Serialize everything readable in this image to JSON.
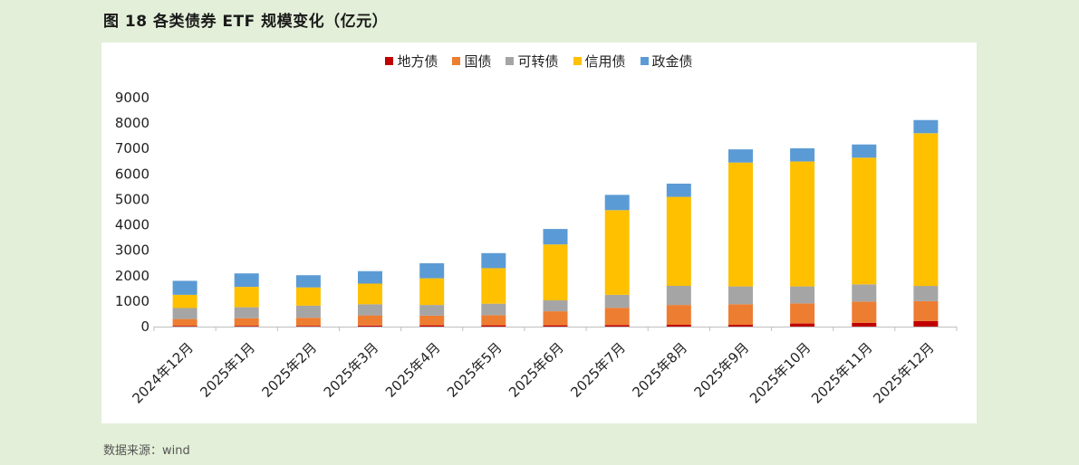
{
  "figure": {
    "title": "图 18 各类债券 ETF 规模变化（亿元）",
    "source": "数据来源：wind"
  },
  "chart_data": {
    "type": "bar",
    "stacked": true,
    "categories": [
      "2024年12月",
      "2025年1月",
      "2025年2月",
      "2025年3月",
      "2025年4月",
      "2025年5月",
      "2025年6月",
      "2025年7月",
      "2025年8月",
      "2025年9月",
      "2025年10月",
      "2025年11月",
      "2025年12月"
    ],
    "series": [
      {
        "name": "地方债",
        "color": "#c00000",
        "values": [
          30,
          30,
          30,
          40,
          50,
          50,
          50,
          60,
          70,
          70,
          120,
          150,
          220
        ]
      },
      {
        "name": "国债",
        "color": "#ed7d31",
        "values": [
          270,
          300,
          320,
          400,
          380,
          400,
          550,
          680,
          780,
          810,
          790,
          830,
          780
        ]
      },
      {
        "name": "可转债",
        "color": "#a5a5a5",
        "values": [
          430,
          430,
          470,
          440,
          420,
          450,
          430,
          510,
          750,
          700,
          670,
          680,
          600
        ]
      },
      {
        "name": "信用债",
        "color": "#ffc000",
        "values": [
          520,
          800,
          720,
          810,
          1050,
          1400,
          2200,
          3330,
          3500,
          4870,
          4910,
          4980,
          6000
        ]
      },
      {
        "name": "政金债",
        "color": "#5b9bd5",
        "values": [
          550,
          530,
          480,
          490,
          590,
          590,
          610,
          600,
          520,
          520,
          520,
          520,
          520
        ]
      }
    ],
    "ylim": [
      0,
      9000
    ],
    "yticks": [
      0,
      1000,
      2000,
      3000,
      4000,
      5000,
      6000,
      7000,
      8000,
      9000
    ],
    "legend_position": "top",
    "grid": false
  }
}
